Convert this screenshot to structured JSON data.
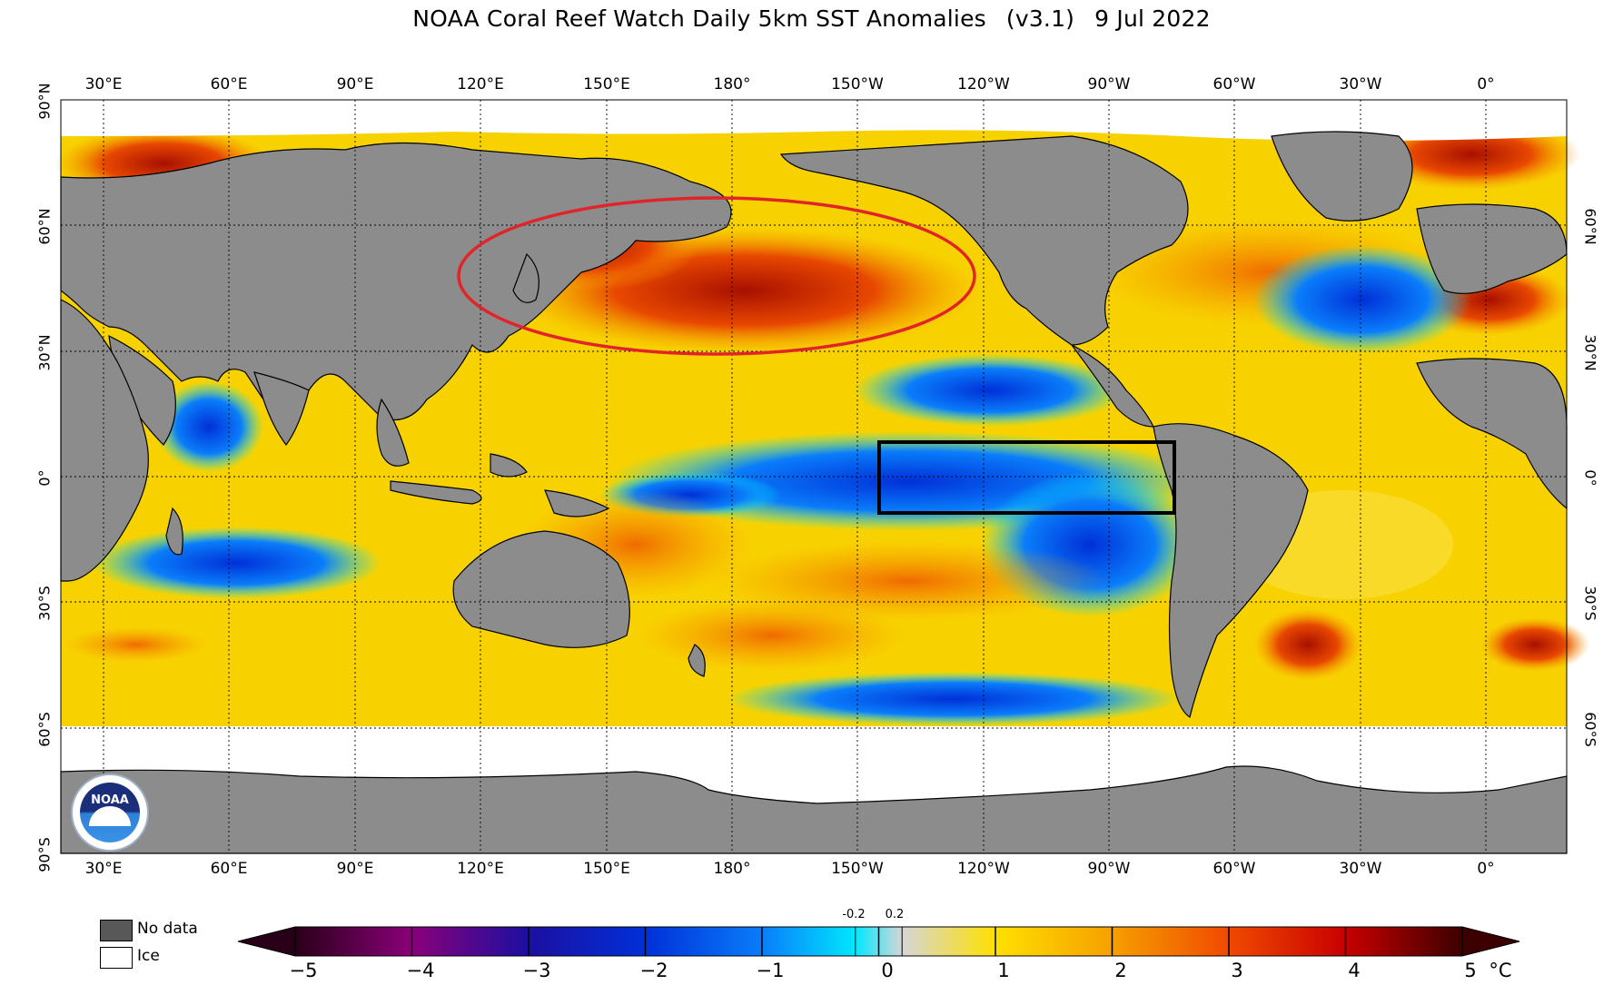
{
  "title": {
    "main": "NOAA Coral Reef Watch Daily 5km SST Anomalies",
    "version": "(v3.1)",
    "date": "9 Jul 2022"
  },
  "map": {
    "lon_labels": [
      "30°E",
      "60°E",
      "90°E",
      "120°E",
      "150°E",
      "180°",
      "150°W",
      "120°W",
      "90°W",
      "60°W",
      "30°W",
      "0°"
    ],
    "lat_labels_left": [
      "90°N",
      "60°N",
      "30°N",
      "0°",
      "30°S",
      "60°S",
      "90°S"
    ],
    "lat_labels_right": [
      "60°N",
      "30°N",
      "0°",
      "30°S",
      "60°S"
    ],
    "colors": {
      "land": "#8c8c8c",
      "ice": "#ffffff",
      "warm_circle": "#e0242a",
      "region_box": "#000000"
    },
    "annotations": [
      {
        "type": "ellipse",
        "region": "North Pacific warm anomaly"
      },
      {
        "type": "rectangle",
        "region": "Eastern equatorial Pacific"
      }
    ]
  },
  "legend": {
    "no_data_label": "No data",
    "ice_label": "Ice",
    "no_data_color": "#585858",
    "ice_color": "#ffffff"
  },
  "colorbar": {
    "unit": "°C",
    "ticks": [
      "−5",
      "−4",
      "−3",
      "−2",
      "−1",
      "0",
      "1",
      "2",
      "3",
      "4",
      "5"
    ],
    "small_labels": [
      "-0.2",
      "0.2"
    ],
    "range": [
      -5,
      5
    ],
    "stops": [
      {
        "v": -5,
        "c": "#2a0018"
      },
      {
        "v": -4,
        "c": "#8a007a"
      },
      {
        "v": -3,
        "c": "#1c0fa0"
      },
      {
        "v": -2,
        "c": "#0030d8"
      },
      {
        "v": -1,
        "c": "#0a7dfa"
      },
      {
        "v": -0.2,
        "c": "#00e8ff"
      },
      {
        "v": 0.2,
        "c": "#d6d6d6"
      },
      {
        "v": 1,
        "c": "#ffe000"
      },
      {
        "v": 2,
        "c": "#f6a000"
      },
      {
        "v": 3,
        "c": "#f04a00"
      },
      {
        "v": 4,
        "c": "#c80000"
      },
      {
        "v": 5,
        "c": "#3c0000"
      }
    ]
  }
}
